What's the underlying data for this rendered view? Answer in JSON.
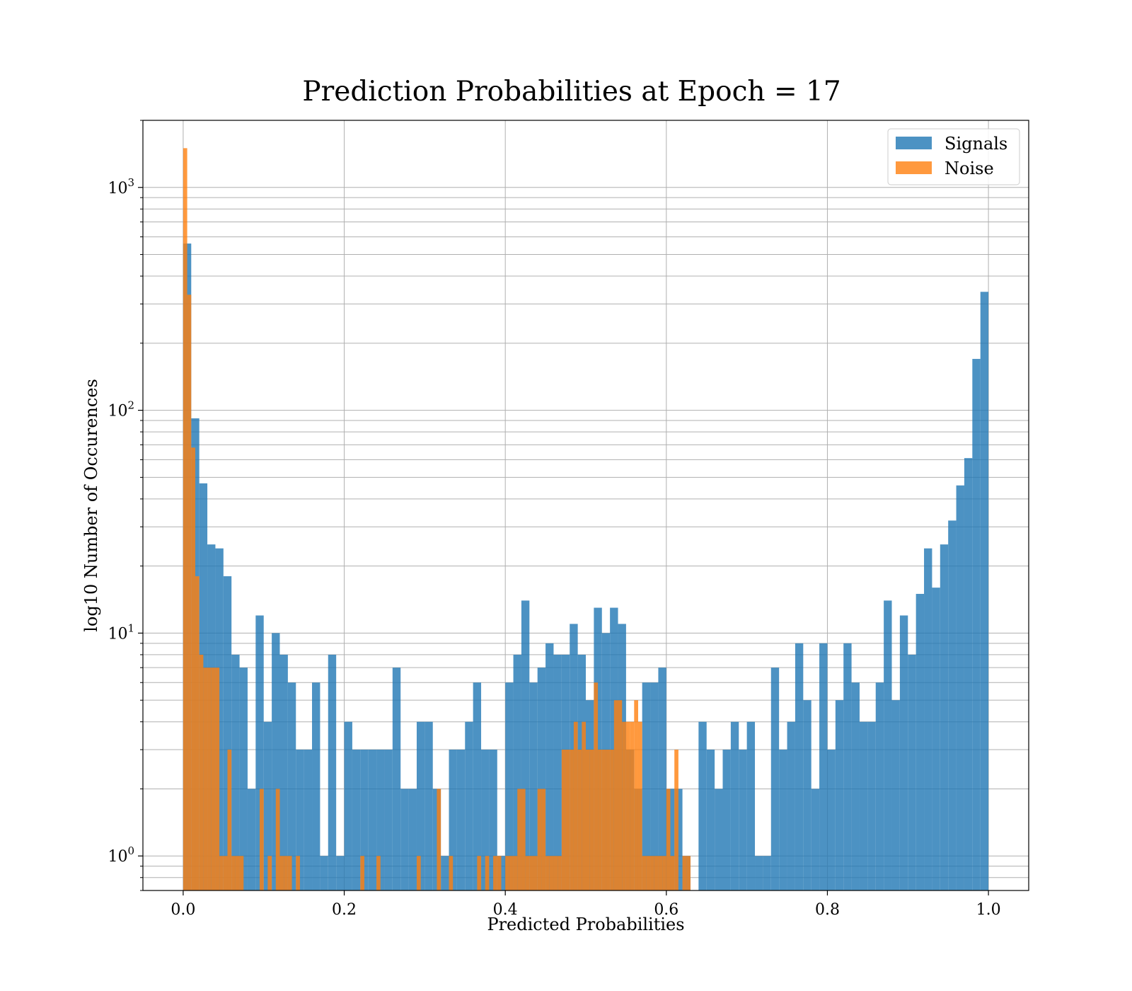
{
  "chart_data": {
    "type": "bar",
    "title": "Prediction Probabilities at Epoch = 17",
    "xlabel": "Predicted Probabilities",
    "ylabel": "log10 Number of Occurences",
    "yscale": "log",
    "xlim": [
      -0.05,
      1.05
    ],
    "ylim": [
      0.7,
      2000
    ],
    "grid": true,
    "legend_position": "upper right",
    "bin_width": 0.01,
    "x_ticks": [
      {
        "value": 0.0,
        "label": "0.0"
      },
      {
        "value": 0.2,
        "label": "0.2"
      },
      {
        "value": 0.4,
        "label": "0.4"
      },
      {
        "value": 0.6,
        "label": "0.6"
      },
      {
        "value": 0.8,
        "label": "0.8"
      },
      {
        "value": 1.0,
        "label": "1.0"
      }
    ],
    "y_ticks": [
      {
        "value": 1,
        "base": "10",
        "exp": "0"
      },
      {
        "value": 10,
        "base": "10",
        "exp": "1"
      },
      {
        "value": 100,
        "base": "10",
        "exp": "2"
      },
      {
        "value": 1000,
        "base": "10",
        "exp": "3"
      }
    ],
    "series": [
      {
        "name": "Signals",
        "color": "#1f77b4",
        "bin_starts": [
          0.0,
          0.01,
          0.02,
          0.03,
          0.04,
          0.05,
          0.06,
          0.07,
          0.08,
          0.09,
          0.1,
          0.11,
          0.12,
          0.13,
          0.14,
          0.15,
          0.16,
          0.17,
          0.18,
          0.19,
          0.2,
          0.21,
          0.22,
          0.23,
          0.24,
          0.25,
          0.26,
          0.27,
          0.28,
          0.29,
          0.3,
          0.31,
          0.32,
          0.33,
          0.34,
          0.35,
          0.36,
          0.37,
          0.38,
          0.39,
          0.4,
          0.41,
          0.42,
          0.43,
          0.44,
          0.45,
          0.46,
          0.47,
          0.48,
          0.49,
          0.5,
          0.51,
          0.52,
          0.53,
          0.54,
          0.55,
          0.56,
          0.57,
          0.58,
          0.59,
          0.6,
          0.61,
          0.62,
          0.63,
          0.64,
          0.65,
          0.66,
          0.67,
          0.68,
          0.69,
          0.7,
          0.71,
          0.72,
          0.73,
          0.74,
          0.75,
          0.76,
          0.77,
          0.78,
          0.79,
          0.8,
          0.81,
          0.82,
          0.83,
          0.84,
          0.85,
          0.86,
          0.87,
          0.88,
          0.89,
          0.9,
          0.91,
          0.92,
          0.93,
          0.94,
          0.95,
          0.96,
          0.97,
          0.98,
          0.99
        ],
        "values": [
          560,
          92,
          47,
          25,
          24,
          18,
          8,
          7,
          2,
          12,
          4,
          10,
          8,
          6,
          3,
          3,
          6,
          1,
          8,
          1,
          4,
          3,
          3,
          3,
          3,
          3,
          7,
          2,
          2,
          4,
          4,
          2,
          1,
          3,
          3,
          4,
          6,
          3,
          3,
          1,
          6,
          8,
          14,
          6,
          7,
          9,
          8,
          8,
          11,
          8,
          5,
          13,
          10,
          13,
          11,
          3,
          2,
          6,
          6,
          7,
          2,
          2,
          1,
          0,
          4,
          3,
          2,
          3,
          4,
          3,
          4,
          1,
          1,
          7,
          3,
          4,
          9,
          5,
          2,
          9,
          3,
          5,
          9,
          6,
          4,
          4,
          6,
          14,
          5,
          12,
          8,
          15,
          24,
          16,
          25,
          32,
          46,
          61,
          170,
          340
        ]
      },
      {
        "name": "Noise",
        "color": "#ff7f0e",
        "bin_starts": [
          0.0,
          0.005,
          0.01,
          0.015,
          0.02,
          0.025,
          0.03,
          0.035,
          0.04,
          0.045,
          0.05,
          0.055,
          0.06,
          0.065,
          0.07,
          0.075,
          0.08,
          0.085,
          0.09,
          0.095,
          0.1,
          0.105,
          0.11,
          0.115,
          0.12,
          0.125,
          0.13,
          0.135,
          0.14,
          0.145,
          0.15,
          0.155,
          0.16,
          0.165,
          0.17,
          0.175,
          0.18,
          0.185,
          0.19,
          0.195,
          0.2,
          0.205,
          0.21,
          0.215,
          0.22,
          0.225,
          0.23,
          0.235,
          0.24,
          0.245,
          0.25,
          0.255,
          0.26,
          0.265,
          0.27,
          0.275,
          0.28,
          0.285,
          0.29,
          0.295,
          0.3,
          0.305,
          0.31,
          0.315,
          0.32,
          0.325,
          0.33,
          0.335,
          0.34,
          0.345,
          0.35,
          0.355,
          0.36,
          0.365,
          0.37,
          0.375,
          0.38,
          0.385,
          0.39,
          0.395,
          0.4,
          0.405,
          0.41,
          0.415,
          0.42,
          0.425,
          0.43,
          0.435,
          0.44,
          0.445,
          0.45,
          0.455,
          0.46,
          0.465,
          0.47,
          0.475,
          0.48,
          0.485,
          0.49,
          0.495,
          0.5,
          0.505,
          0.51,
          0.515,
          0.52,
          0.525,
          0.53,
          0.535,
          0.54,
          0.545,
          0.55,
          0.555,
          0.56,
          0.565,
          0.57,
          0.575,
          0.58,
          0.585,
          0.59,
          0.595,
          0.6,
          0.605,
          0.61,
          0.615,
          0.62,
          0.625,
          0.63
        ],
        "values": [
          1500,
          330,
          68,
          18,
          8,
          7,
          7,
          7,
          7,
          1,
          1,
          3,
          1,
          1,
          1,
          0,
          0,
          0,
          0,
          2,
          0,
          1,
          0,
          2,
          1,
          1,
          1,
          0,
          1,
          0,
          0,
          0,
          0,
          0,
          0,
          0,
          0,
          0,
          0,
          0,
          0,
          0,
          0,
          0,
          1,
          0,
          0,
          0,
          1,
          0,
          0,
          0,
          0,
          0,
          0,
          0,
          0,
          0,
          1,
          0,
          0,
          0,
          0,
          2,
          0,
          0,
          1,
          0,
          0,
          0,
          0,
          0,
          0,
          1,
          0,
          1,
          0,
          1,
          1,
          0,
          1,
          1,
          1,
          2,
          2,
          1,
          1,
          1,
          2,
          2,
          1,
          1,
          1,
          1,
          3,
          3,
          3,
          4,
          3,
          4,
          3,
          3,
          6,
          3,
          3,
          3,
          3,
          5,
          5,
          4,
          4,
          4,
          5,
          4,
          1,
          1,
          1,
          1,
          1,
          1,
          2,
          1,
          3,
          0,
          1,
          1
        ]
      }
    ]
  }
}
